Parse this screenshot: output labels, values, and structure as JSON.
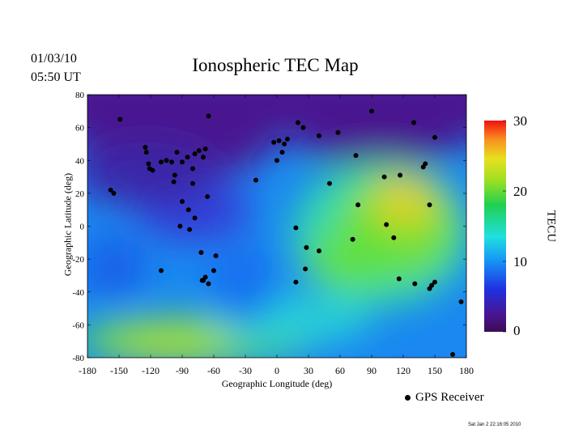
{
  "header": {
    "date": "01/03/10",
    "time": "05:50 UT",
    "title": "Ionospheric TEC Map"
  },
  "footer": {
    "stamp": "Sat Jan  2 22:16:05 2010"
  },
  "colorbar": {
    "label": "TECU",
    "ticks": [
      "0",
      "10",
      "20",
      "30"
    ],
    "range": [
      0,
      30
    ],
    "colors": [
      "#3a0d55",
      "#4a1590",
      "#2030e0",
      "#1590f5",
      "#20e0e0",
      "#20d050",
      "#a0e020",
      "#e8e020",
      "#f89020",
      "#f01010"
    ]
  },
  "legend": {
    "label": "GPS Receiver"
  },
  "chart_data": {
    "type": "heatmap",
    "title": "Ionospheric TEC Map",
    "xlabel": "Geographic Longitude (deg)",
    "ylabel": "Geographic Latitude (deg)",
    "xlim": [
      -180,
      180
    ],
    "ylim": [
      -80,
      80
    ],
    "xticks": [
      -180,
      -150,
      -120,
      -90,
      -60,
      -30,
      0,
      30,
      60,
      90,
      120,
      150,
      180
    ],
    "yticks": [
      80,
      60,
      40,
      20,
      0,
      -20,
      -40,
      -60,
      -80
    ],
    "value_label": "TECU",
    "value_range": [
      0,
      30
    ],
    "tec_features": [
      {
        "lon": 135,
        "lat": 18,
        "tec": 25
      },
      {
        "lon": 100,
        "lat": 0,
        "tec": 18
      },
      {
        "lon": 75,
        "lat": 20,
        "tec": 15
      },
      {
        "lon": 140,
        "lat": -20,
        "tec": 17
      },
      {
        "lon": -90,
        "lat": -68,
        "tec": 16
      },
      {
        "lon": -30,
        "lat": -65,
        "tec": 14
      },
      {
        "lon": 20,
        "lat": -45,
        "tec": 10
      },
      {
        "lon": -150,
        "lat": -25,
        "tec": 8
      },
      {
        "lon": -100,
        "lat": 20,
        "tec": 4
      },
      {
        "lon": -40,
        "lat": 55,
        "tec": 2
      },
      {
        "lon": 60,
        "lat": 70,
        "tec": 1
      },
      {
        "lon": -140,
        "lat": 70,
        "tec": 1
      }
    ],
    "receivers": [
      [
        -149,
        65
      ],
      [
        -125,
        48
      ],
      [
        -124,
        45
      ],
      [
        -122,
        38
      ],
      [
        -121,
        35
      ],
      [
        -118,
        34
      ],
      [
        -110,
        39
      ],
      [
        -105,
        40
      ],
      [
        -100,
        39
      ],
      [
        -95,
        45
      ],
      [
        -90,
        39
      ],
      [
        -85,
        42
      ],
      [
        -80,
        35
      ],
      [
        -78,
        44
      ],
      [
        -74,
        46
      ],
      [
        -68,
        47
      ],
      [
        -70,
        42
      ],
      [
        -97,
        31
      ],
      [
        -98,
        27
      ],
      [
        -80,
        26
      ],
      [
        -66,
        18
      ],
      [
        -158,
        22
      ],
      [
        -155,
        20
      ],
      [
        -90,
        15
      ],
      [
        -84,
        10
      ],
      [
        -78,
        5
      ],
      [
        -92,
        0
      ],
      [
        -83,
        -2
      ],
      [
        -72,
        -16
      ],
      [
        -68,
        -31
      ],
      [
        -70,
        -33
      ],
      [
        -65,
        -35
      ],
      [
        -60,
        -27
      ],
      [
        -58,
        -18
      ],
      [
        -71,
        -33
      ],
      [
        -110,
        -27
      ],
      [
        -65,
        67
      ],
      [
        -20,
        28
      ],
      [
        0,
        40
      ],
      [
        -3,
        51
      ],
      [
        2,
        52
      ],
      [
        7,
        50
      ],
      [
        10,
        53
      ],
      [
        5,
        45
      ],
      [
        20,
        63
      ],
      [
        25,
        60
      ],
      [
        40,
        55
      ],
      [
        58,
        57
      ],
      [
        90,
        70
      ],
      [
        130,
        63
      ],
      [
        150,
        54
      ],
      [
        75,
        43
      ],
      [
        50,
        26
      ],
      [
        77,
        13
      ],
      [
        102,
        30
      ],
      [
        117,
        31
      ],
      [
        139,
        36
      ],
      [
        141,
        38
      ],
      [
        145,
        13
      ],
      [
        104,
        1
      ],
      [
        18,
        -1
      ],
      [
        28,
        -13
      ],
      [
        40,
        -15
      ],
      [
        72,
        -8
      ],
      [
        111,
        -7
      ],
      [
        116,
        -32
      ],
      [
        18,
        -34
      ],
      [
        27,
        -26
      ],
      [
        131,
        -35
      ],
      [
        147,
        -36
      ],
      [
        150,
        -34
      ],
      [
        145,
        -38
      ],
      [
        175,
        -46
      ],
      [
        167,
        -78
      ]
    ]
  }
}
